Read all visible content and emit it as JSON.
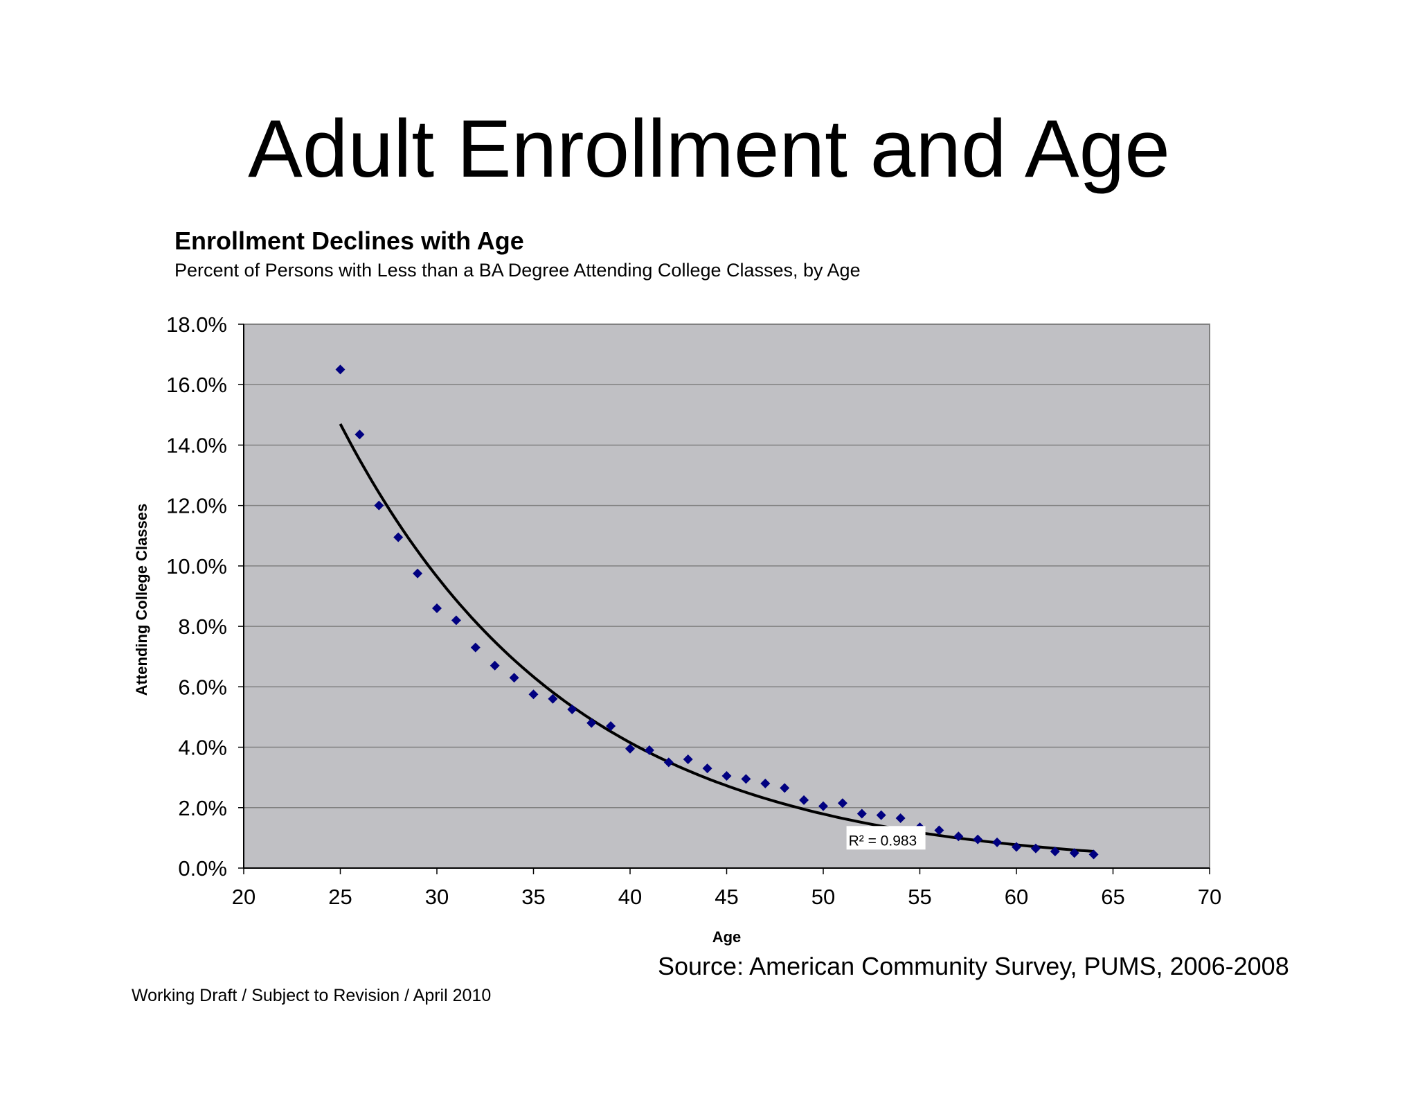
{
  "slide": {
    "title": "Adult Enrollment and Age",
    "source": "Source: American Community Survey, PUMS, 2006-2008",
    "footer": "Working Draft / Subject to Revision / April 2010"
  },
  "colors": {
    "plot_background": "#c0c0c4",
    "gridline": "#808080",
    "marker": "#000080",
    "trendline": "#000000"
  },
  "chart_data": {
    "type": "scatter",
    "title": "Enrollment Declines with Age",
    "subtitle": "Percent of Persons with Less than a BA Degree Attending College Classes, by Age",
    "xlabel": "Age",
    "ylabel": "Attending College Classes",
    "xlim": [
      20,
      70
    ],
    "ylim": [
      0,
      18
    ],
    "x_ticks": [
      20,
      25,
      30,
      35,
      40,
      45,
      50,
      55,
      60,
      65,
      70
    ],
    "y_ticks": [
      0,
      2,
      4,
      6,
      8,
      10,
      12,
      14,
      16,
      18
    ],
    "y_tick_labels": [
      "0.0%",
      "2.0%",
      "4.0%",
      "6.0%",
      "8.0%",
      "10.0%",
      "12.0%",
      "14.0%",
      "16.0%",
      "18.0%"
    ],
    "grid": "horizontal",
    "marker": "diamond",
    "series": [
      {
        "x": [
          25,
          26,
          27,
          28,
          29,
          30,
          31,
          32,
          33,
          34,
          35,
          36,
          37,
          38,
          39,
          40,
          41,
          42,
          43,
          44,
          45,
          46,
          47,
          48,
          49,
          50,
          51,
          52,
          53,
          54,
          55,
          56,
          57,
          58,
          59,
          60,
          61,
          62,
          63,
          64
        ],
        "y": [
          16.5,
          14.35,
          12.0,
          10.95,
          9.75,
          8.6,
          8.2,
          7.3,
          6.7,
          6.3,
          5.75,
          5.6,
          5.25,
          4.8,
          4.7,
          3.95,
          3.9,
          3.5,
          3.6,
          3.3,
          3.05,
          2.95,
          2.8,
          2.65,
          2.25,
          2.05,
          2.15,
          1.8,
          1.75,
          1.65,
          1.35,
          1.25,
          1.05,
          0.95,
          0.85,
          0.7,
          0.65,
          0.55,
          0.5,
          0.45
        ]
      }
    ],
    "trendline": {
      "type": "exponential",
      "x_range": [
        25,
        64
      ],
      "start_y": 14.7,
      "end_y": 0.55,
      "annotation": "R² = 0.983",
      "annotation_x": 54,
      "annotation_y": 0.75
    }
  }
}
